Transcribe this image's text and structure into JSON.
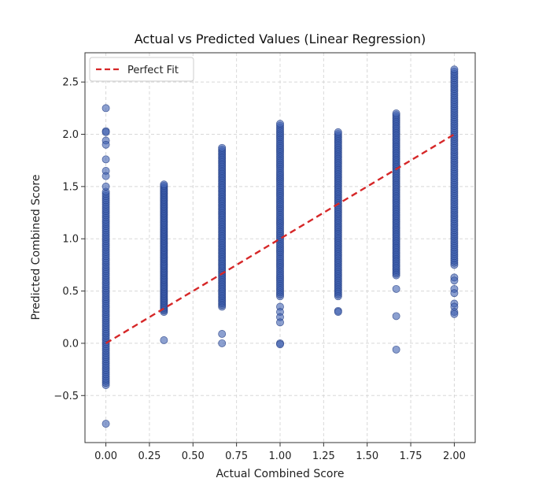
{
  "chart_data": {
    "type": "scatter",
    "title": "Actual vs Predicted Values (Linear Regression)",
    "xlabel": "Actual Combined Score",
    "ylabel": "Predicted Combined Score",
    "xlim": [
      -0.12,
      2.12
    ],
    "ylim": [
      -0.95,
      2.78
    ],
    "xticks": [
      0.0,
      0.25,
      0.5,
      0.75,
      1.0,
      1.25,
      1.5,
      1.75,
      2.0
    ],
    "xtick_labels": [
      "0.00",
      "0.25",
      "0.50",
      "0.75",
      "1.00",
      "1.25",
      "1.50",
      "1.75",
      "2.00"
    ],
    "yticks": [
      -0.5,
      0.0,
      0.5,
      1.0,
      1.5,
      2.0,
      2.5
    ],
    "ytick_labels": [
      "−0.5",
      "0.0",
      "0.5",
      "1.0",
      "1.5",
      "2.0",
      "2.5"
    ],
    "grid": true,
    "legend": {
      "position": "top-left",
      "entries": [
        "Perfect Fit"
      ]
    },
    "colors": {
      "points": "#4060b0",
      "point_edge": "#1f3a80",
      "fit_line": "#d62728"
    },
    "perfect_fit_line": {
      "x": [
        0.0,
        2.0
      ],
      "y": [
        0.0,
        2.0
      ]
    },
    "groups": [
      {
        "x": 0.0,
        "y_min": -0.4,
        "y_max": 1.45,
        "outliers": [
          2.25,
          2.03,
          2.02,
          1.94,
          1.9,
          1.76,
          1.65,
          1.6,
          1.5,
          -0.77
        ]
      },
      {
        "x": 0.3333,
        "y_min": 0.3,
        "y_max": 1.52,
        "outliers": [
          0.03
        ]
      },
      {
        "x": 0.6667,
        "y_min": 0.35,
        "y_max": 1.87,
        "outliers": [
          0.09,
          0.0
        ]
      },
      {
        "x": 1.0,
        "y_min": 0.45,
        "y_max": 2.1,
        "outliers": [
          0.35,
          0.3,
          0.25,
          0.2,
          0.0,
          -0.01
        ]
      },
      {
        "x": 1.3333,
        "y_min": 0.45,
        "y_max": 2.02,
        "outliers": [
          0.31,
          0.3
        ]
      },
      {
        "x": 1.6667,
        "y_min": 0.65,
        "y_max": 2.2,
        "outliers": [
          0.52,
          0.26,
          -0.06
        ]
      },
      {
        "x": 2.0,
        "y_min": 0.75,
        "y_max": 2.62,
        "outliers": [
          0.63,
          0.6,
          0.52,
          0.48,
          0.38,
          0.35,
          0.3,
          0.28
        ]
      }
    ]
  }
}
